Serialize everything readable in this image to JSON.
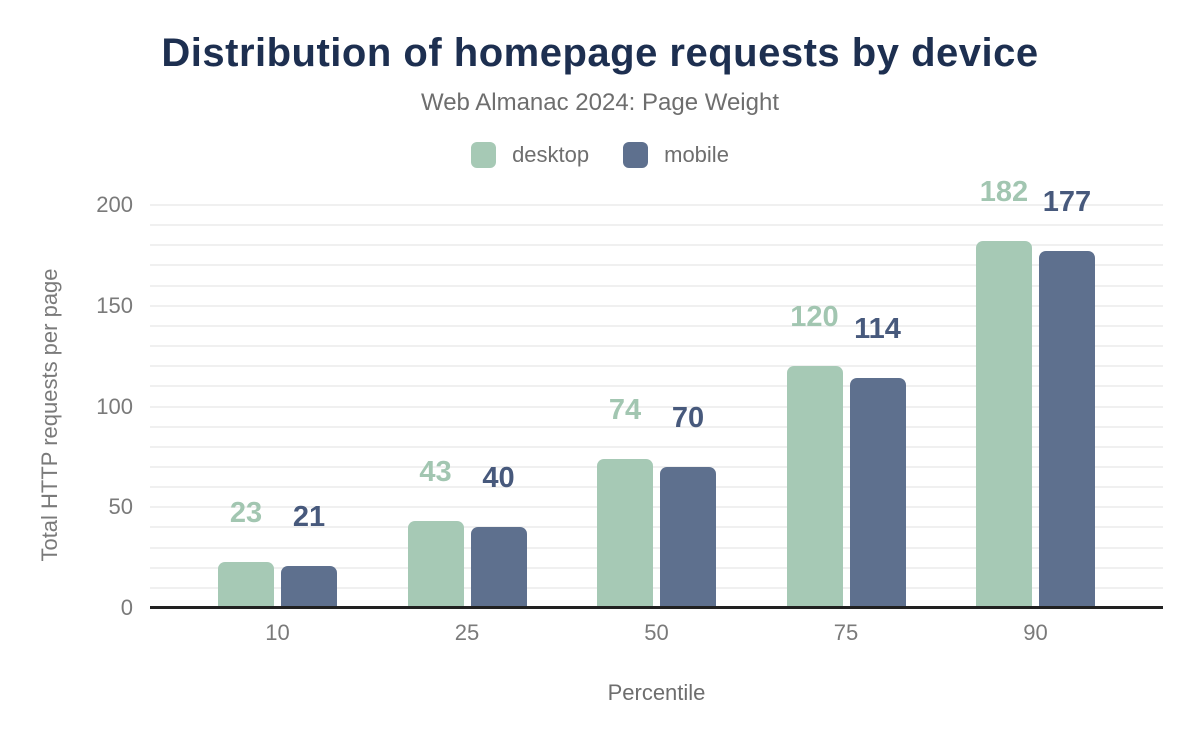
{
  "chart_data": {
    "type": "bar",
    "title": "Distribution of homepage requests by device",
    "subtitle": "Web Almanac 2024: Page Weight",
    "xlabel": "Percentile",
    "ylabel": "Total HTTP requests per page",
    "categories": [
      "10",
      "25",
      "50",
      "75",
      "90"
    ],
    "series": [
      {
        "name": "desktop",
        "color": "#a6c9b5",
        "label_color": "#a2c6b1",
        "values": [
          23,
          43,
          74,
          120,
          182
        ]
      },
      {
        "name": "mobile",
        "color": "#5e708e",
        "label_color": "#47597c",
        "values": [
          21,
          40,
          70,
          114,
          177
        ]
      }
    ],
    "ylim": [
      0,
      200
    ],
    "yticks": [
      0,
      50,
      100,
      150,
      200
    ],
    "grid": true,
    "grid_interval": 10,
    "legend_position": "top",
    "value_labels_shown": true,
    "colors": {
      "title": "#1d2f50",
      "subtitle": "#6e6e6e",
      "axis_text": "#7a7a7a",
      "gridline": "#f0f0f0",
      "axis_line": "#212121",
      "background": "#ffffff"
    }
  }
}
